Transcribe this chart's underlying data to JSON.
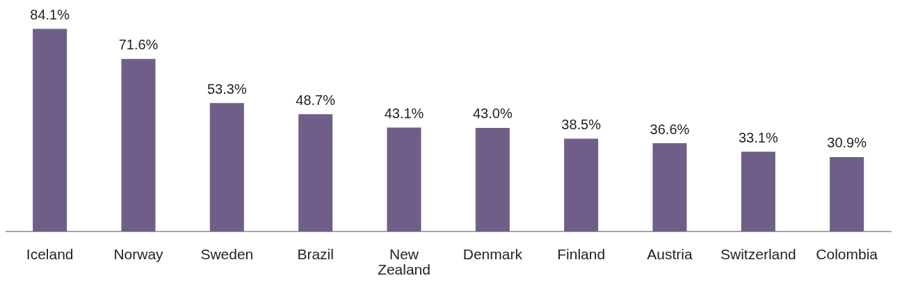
{
  "chart_data": {
    "type": "bar",
    "categories": [
      "Iceland",
      "Norway",
      "Sweden",
      "Brazil",
      "New Zealand",
      "Denmark",
      "Finland",
      "Austria",
      "Switzerland",
      "Colombia"
    ],
    "values": [
      84.1,
      71.6,
      53.3,
      48.7,
      43.1,
      43.0,
      38.5,
      36.6,
      33.1,
      30.9
    ],
    "value_labels": [
      "84.1%",
      "71.6%",
      "53.3%",
      "48.7%",
      "43.1%",
      "43.0%",
      "38.5%",
      "36.6%",
      "33.1%",
      "30.9%"
    ],
    "color": "#6f5f88",
    "tick_labels": "x"
  }
}
